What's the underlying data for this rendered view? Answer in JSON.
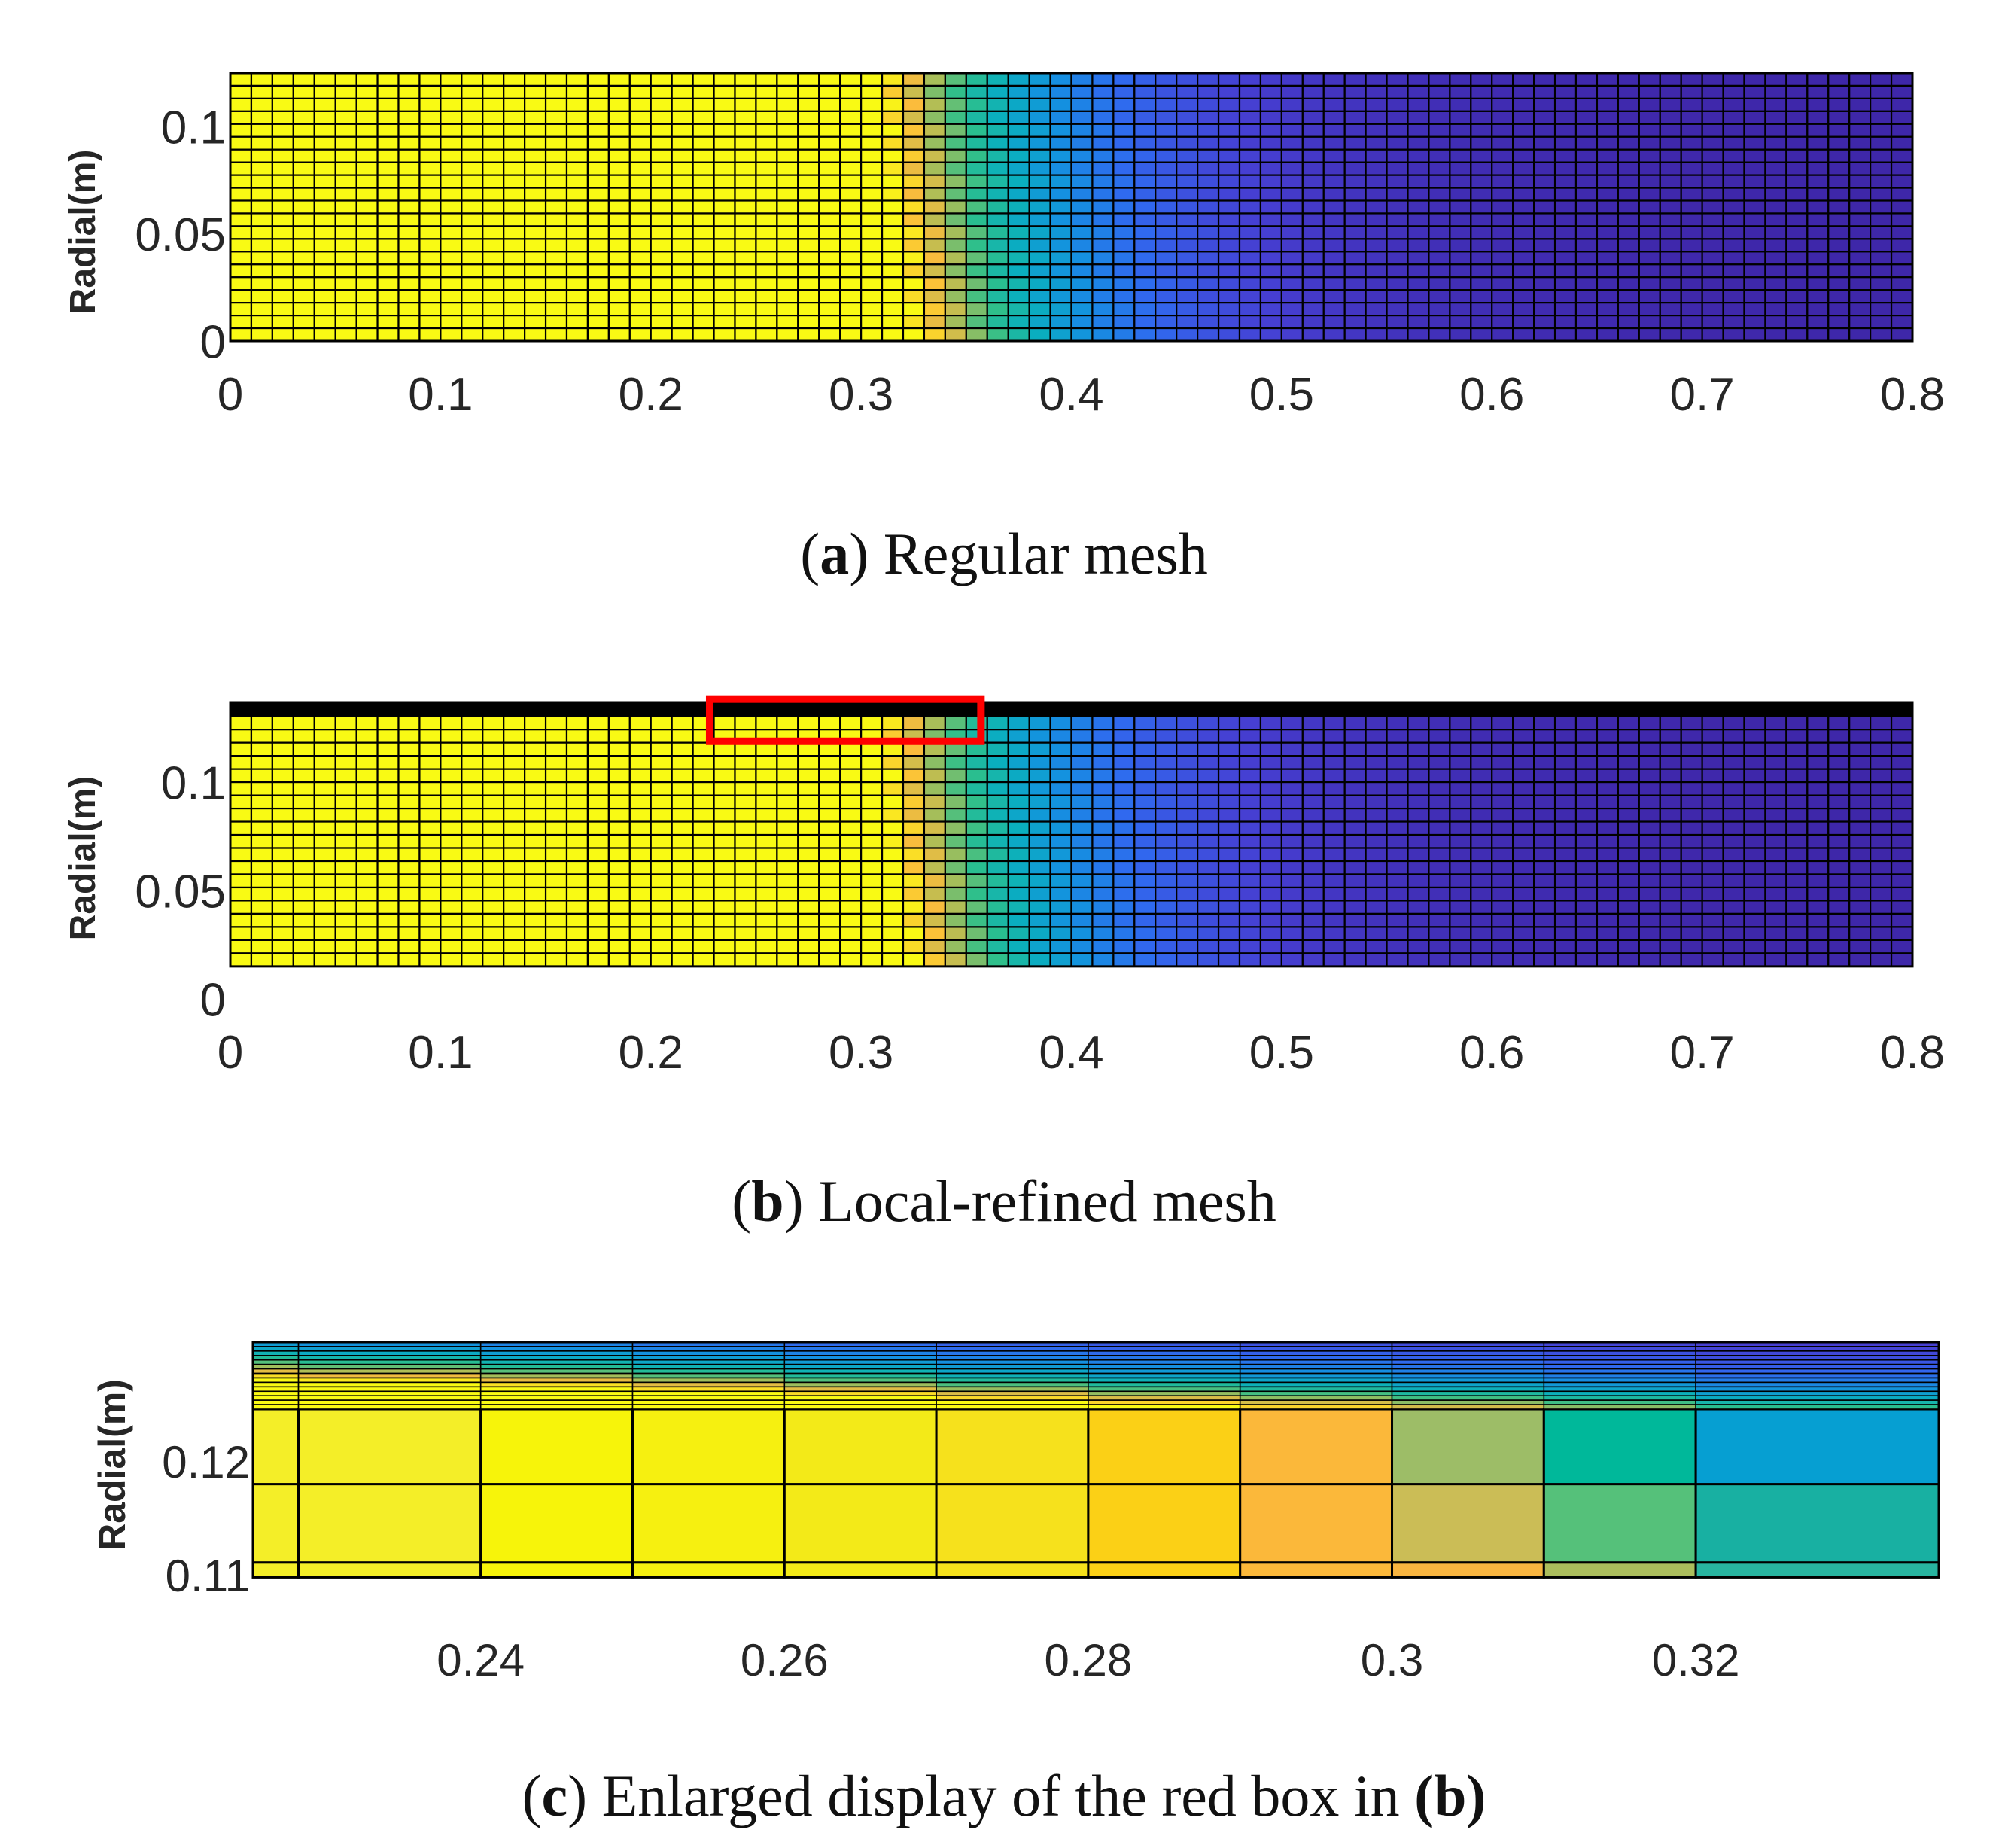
{
  "chart_data": [
    {
      "id": "a",
      "type": "heatmap",
      "mesh": "regular",
      "caption": {
        "letter": "a",
        "text": "Regular mesh"
      },
      "ylabel": "Radial(m)",
      "xlim": [
        0,
        0.8
      ],
      "ylim": [
        0,
        0.125
      ],
      "field_domain": {
        "x": [
          0,
          0.8
        ],
        "r": [
          0,
          0.125
        ]
      },
      "xticks": [
        0,
        0.1,
        0.2,
        0.3,
        0.4,
        0.5,
        0.6,
        0.7,
        0.8
      ],
      "xtick_labels": [
        "0",
        "0.1",
        "0.2",
        "0.3",
        "0.4",
        "0.5",
        "0.6",
        "0.7",
        "0.8"
      ],
      "yticks": [
        0,
        0.05,
        0.1
      ],
      "ytick_labels": [
        "0",
        "0.05",
        "0.1"
      ],
      "grid_cells": {
        "nx": 80,
        "nr": 21
      },
      "colormap": "parula",
      "front_x": 0.3
    },
    {
      "id": "b",
      "type": "heatmap",
      "mesh": "local-refined",
      "caption": {
        "letter": "b",
        "text": "Local-refined mesh"
      },
      "ylabel": "Radial(m)",
      "xlim": [
        0,
        0.8
      ],
      "ylim": [
        0,
        0.137
      ],
      "field_domain": {
        "x": [
          0,
          0.8
        ],
        "r": [
          0.015,
          0.137
        ]
      },
      "xticks": [
        0,
        0.1,
        0.2,
        0.3,
        0.4,
        0.5,
        0.6,
        0.7,
        0.8
      ],
      "xtick_labels": [
        "0",
        "0.1",
        "0.2",
        "0.3",
        "0.4",
        "0.5",
        "0.6",
        "0.7",
        "0.8"
      ],
      "yticks": [
        0,
        0.05,
        0.1
      ],
      "ytick_labels": [
        "0",
        "0.05",
        "0.1"
      ],
      "grid_cells": {
        "nx": 80,
        "nr": 19
      },
      "refined_band_r": [
        0.1305,
        0.137
      ],
      "colormap": "parula",
      "front_x": 0.3,
      "highlight_box": {
        "x": [
          0.228,
          0.357
        ],
        "r": [
          0.119,
          0.1385
        ],
        "color": "#ff0000"
      }
    },
    {
      "id": "c",
      "type": "heatmap",
      "mesh": "zoom",
      "caption": {
        "letter": "c",
        "text": "Enlarged display of the red box in",
        "ref": "(b)"
      },
      "ylabel": "Radial(m)",
      "xlim": [
        0.225,
        0.336
      ],
      "ylim": [
        0.1075,
        0.1305
      ],
      "field_domain": {
        "x": [
          0.225,
          0.336
        ],
        "r": [
          0.1098,
          0.1305
        ]
      },
      "xticks": [
        0.24,
        0.26,
        0.28,
        0.3,
        0.32
      ],
      "xtick_labels": [
        "0.24",
        "0.26",
        "0.28",
        "0.3",
        "0.32"
      ],
      "yticks": [
        0.11,
        0.12
      ],
      "ytick_labels": [
        "0.11",
        "0.12"
      ],
      "column_edges": [
        0.225,
        0.228,
        0.24,
        0.25,
        0.26,
        0.27,
        0.28,
        0.29,
        0.3,
        0.31,
        0.32,
        0.336
      ],
      "row_edges": [
        0.1098,
        0.1111,
        0.118,
        0.1246,
        0.1305
      ],
      "coarse_cell_colors": [
        [
          "#f4ee28",
          "#f7f40a",
          "#f6f010",
          "#f3ea18",
          "#f6e11c",
          "#fbd016",
          "#fbb83a",
          "#cbbd56",
          "#55c17a",
          "#18b0a2"
        ],
        [
          "#f4ee28",
          "#f7f40a",
          "#f6f010",
          "#f3ea18",
          "#f6e11c",
          "#fbd016",
          "#fbb83a",
          "#9dbd67",
          "#00b89a",
          "#069fd2"
        ]
      ],
      "bottom_strip_colors": [
        "#f4ee28",
        "#f7f40a",
        "#f6f010",
        "#f3ea18",
        "#f6e11c",
        "#fbd016",
        "#fbb83a",
        "#f8b540",
        "#abbd5c",
        "#28b4a0"
      ],
      "refined_rows": 15,
      "colormap": "parula"
    }
  ]
}
